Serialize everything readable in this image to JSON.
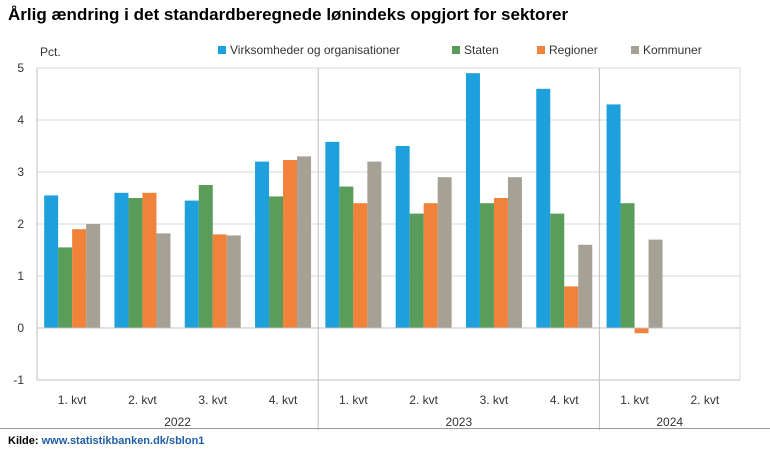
{
  "title": "Årlig ændring i det standardberegnede lønindeks opgjort for sektorer",
  "source": {
    "label": "Kilde:",
    "link": "www.statistikbanken.dk/sblon1"
  },
  "chart_data": {
    "type": "bar",
    "ylabel": "Pct.",
    "ylim": [
      -1,
      5
    ],
    "yticks": [
      -1,
      0,
      1,
      2,
      3,
      4,
      5
    ],
    "grid": true,
    "legend_position": "top",
    "categories": [
      "1. kvt",
      "2. kvt",
      "3. kvt",
      "4. kvt",
      "1. kvt",
      "2. kvt",
      "3. kvt",
      "4. kvt",
      "1. kvt",
      "2. kvt"
    ],
    "year_groups": [
      {
        "label": "2022",
        "categories": 4
      },
      {
        "label": "2023",
        "categories": 4
      },
      {
        "label": "2024",
        "categories": 2
      }
    ],
    "series": [
      {
        "name": "Virksomheder og organisationer",
        "color": "#1ea0dc",
        "values": [
          2.55,
          2.6,
          2.45,
          3.2,
          3.58,
          3.5,
          4.9,
          4.6,
          4.3,
          null
        ]
      },
      {
        "name": "Staten",
        "color": "#5a9c5a",
        "values": [
          1.55,
          2.5,
          2.75,
          2.53,
          2.72,
          2.2,
          2.4,
          2.2,
          2.4,
          null
        ]
      },
      {
        "name": "Regioner",
        "color": "#f0823a",
        "values": [
          1.9,
          2.6,
          1.8,
          3.23,
          2.4,
          2.4,
          2.5,
          0.8,
          -0.1,
          null
        ]
      },
      {
        "name": "Kommuner",
        "color": "#a5a194",
        "values": [
          2.0,
          1.82,
          1.78,
          3.3,
          3.2,
          2.9,
          2.9,
          1.6,
          1.7,
          null
        ]
      }
    ]
  }
}
